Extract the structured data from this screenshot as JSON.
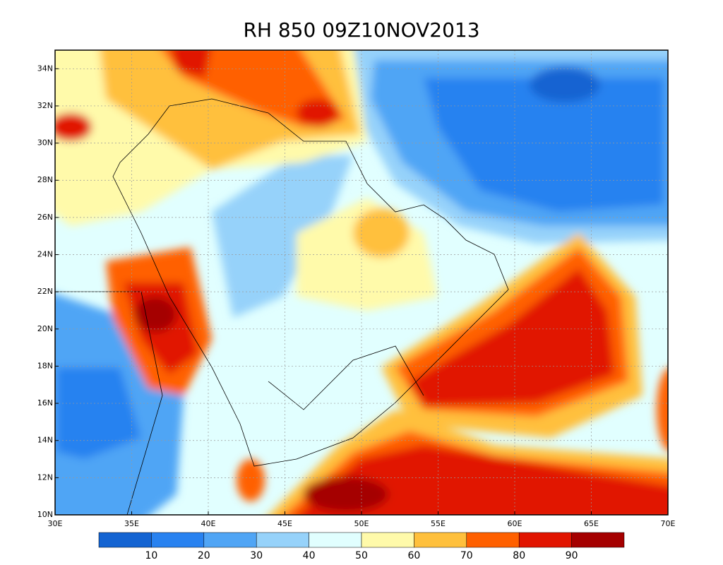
{
  "title": "RH 850 09Z10NOV2013",
  "map": {
    "lon_range": [
      30,
      70
    ],
    "lat_range": [
      10,
      35
    ],
    "grid": true,
    "lon_ticks": [
      {
        "value": 30,
        "label": "30E"
      },
      {
        "value": 35,
        "label": "35E"
      },
      {
        "value": 40,
        "label": "40E"
      },
      {
        "value": 45,
        "label": "45E"
      },
      {
        "value": 50,
        "label": "50E"
      },
      {
        "value": 55,
        "label": "55E"
      },
      {
        "value": 60,
        "label": "60E"
      },
      {
        "value": 65,
        "label": "65E"
      },
      {
        "value": 70,
        "label": "70E"
      }
    ],
    "lat_ticks": [
      {
        "value": 10,
        "label": "10N"
      },
      {
        "value": 12,
        "label": "12N"
      },
      {
        "value": 14,
        "label": "14N"
      },
      {
        "value": 16,
        "label": "16N"
      },
      {
        "value": 18,
        "label": "18N"
      },
      {
        "value": 20,
        "label": "20N"
      },
      {
        "value": 22,
        "label": "22N"
      },
      {
        "value": 24,
        "label": "24N"
      },
      {
        "value": 26,
        "label": "26N"
      },
      {
        "value": 28,
        "label": "28N"
      },
      {
        "value": 30,
        "label": "30N"
      },
      {
        "value": 32,
        "label": "32N"
      },
      {
        "value": 34,
        "label": "34N"
      }
    ]
  },
  "colorbar": {
    "colors": [
      "#1464d2",
      "#2882f0",
      "#50a5f5",
      "#96d2fa",
      "#e1ffff",
      "#fffaaa",
      "#ffc03c",
      "#ff6000",
      "#e11400",
      "#a50000"
    ],
    "labels": [
      10,
      20,
      30,
      40,
      50,
      60,
      70,
      80,
      90
    ]
  }
}
